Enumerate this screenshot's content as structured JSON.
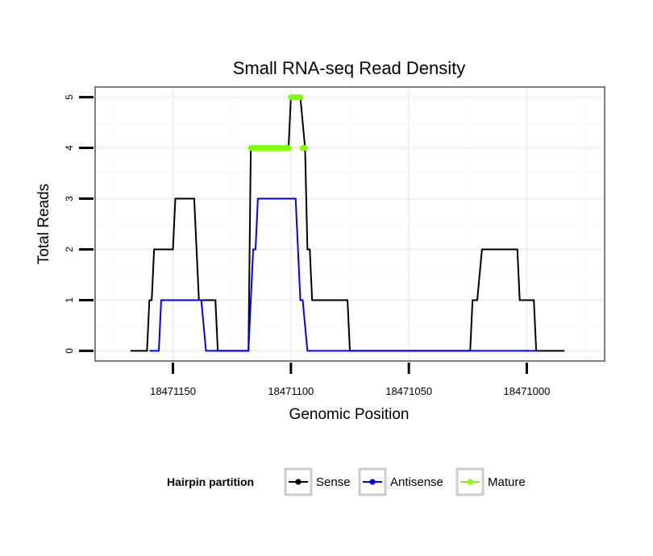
{
  "chart_data": {
    "type": "line",
    "title": "Small RNA-seq Read Density",
    "xlabel": "Genomic Position",
    "ylabel": "Total Reads",
    "x_reversed": true,
    "xlim": [
      18471183,
      18470967
    ],
    "ylim": [
      -0.2,
      5.2
    ],
    "x_ticks": [
      18471150,
      18471100,
      18471050,
      18471000
    ],
    "x_tick_labels": [
      "18471150",
      "18471100",
      "18471050",
      "18471000"
    ],
    "y_ticks": [
      0,
      1,
      2,
      3,
      4,
      5
    ],
    "y_tick_labels": [
      "0",
      "1",
      "2",
      "3",
      "4",
      "5"
    ],
    "grid": true,
    "legend": {
      "title": "Hairpin partition",
      "position": "bottom",
      "entries": [
        "Sense",
        "Antisense",
        "Mature"
      ]
    },
    "series": [
      {
        "name": "Sense",
        "color": "#000000",
        "marker": false,
        "points": [
          [
            18471168,
            0
          ],
          [
            18471161,
            0
          ],
          [
            18471160,
            1
          ],
          [
            18471159,
            1
          ],
          [
            18471158,
            2
          ],
          [
            18471150,
            2
          ],
          [
            18471149,
            3
          ],
          [
            18471141,
            3
          ],
          [
            18471139,
            1
          ],
          [
            18471132,
            1
          ],
          [
            18471131,
            0
          ],
          [
            18471118,
            0
          ],
          [
            18471117,
            4
          ],
          [
            18471101,
            4
          ],
          [
            18471100,
            5
          ],
          [
            18471096,
            5
          ],
          [
            18471094,
            4
          ],
          [
            18471093,
            2
          ],
          [
            18471092,
            2
          ],
          [
            18471091,
            1
          ],
          [
            18471076,
            1
          ],
          [
            18471075,
            0
          ],
          [
            18471024,
            0
          ],
          [
            18471023,
            1
          ],
          [
            18471021,
            1
          ],
          [
            18471019,
            2
          ],
          [
            18471004,
            2
          ],
          [
            18471003,
            1
          ],
          [
            18470997,
            1
          ],
          [
            18470996,
            0
          ],
          [
            18470984,
            0
          ]
        ]
      },
      {
        "name": "Antisense",
        "color": "#0000ff",
        "marker": false,
        "points": [
          [
            18471160,
            0
          ],
          [
            18471156,
            0
          ],
          [
            18471155,
            1
          ],
          [
            18471138,
            1
          ],
          [
            18471136,
            0
          ],
          [
            18471131,
            0
          ],
          [
            18471118,
            0
          ],
          [
            18471117,
            1
          ],
          [
            18471116,
            2
          ],
          [
            18471115,
            2
          ],
          [
            18471114,
            3
          ],
          [
            18471098,
            3
          ],
          [
            18471096,
            1
          ],
          [
            18471095,
            1
          ],
          [
            18471093,
            0
          ],
          [
            18470996,
            0
          ]
        ]
      },
      {
        "name": "Mature",
        "color": "#7fff00",
        "marker": true,
        "points": [
          [
            18471117,
            4
          ],
          [
            18471116,
            4
          ],
          [
            18471115,
            4
          ],
          [
            18471114,
            4
          ],
          [
            18471113,
            4
          ],
          [
            18471112,
            4
          ],
          [
            18471111,
            4
          ],
          [
            18471110,
            4
          ],
          [
            18471109,
            4
          ],
          [
            18471108,
            4
          ],
          [
            18471107,
            4
          ],
          [
            18471106,
            4
          ],
          [
            18471105,
            4
          ],
          [
            18471104,
            4
          ],
          [
            18471103,
            4
          ],
          [
            18471102,
            4
          ],
          [
            18471101,
            4
          ],
          [
            18471100,
            5
          ],
          [
            18471099,
            5
          ],
          [
            18471098,
            5
          ],
          [
            18471097,
            5
          ],
          [
            18471096,
            5
          ],
          [
            18471095,
            4
          ],
          [
            18471094,
            4
          ]
        ]
      }
    ]
  }
}
